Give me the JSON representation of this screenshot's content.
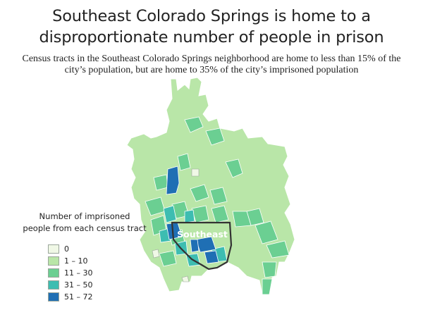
{
  "title": {
    "line1": "Southeast Colorado Springs is home to a",
    "line2": "disproportionate number of people in prison"
  },
  "subtitle": {
    "line1": "Census tracts in the Southeast Colorado Springs neighborhood are home to less than 15% of the",
    "line2": "city’s population, but are home to 35% of the city’s imprisoned population"
  },
  "map_label": "Southeast",
  "legend": {
    "title_line1": "Number of imprisoned",
    "title_line2": "people from each census tract",
    "items": [
      {
        "label": "0",
        "color": "#f0f8e6"
      },
      {
        "label": "1 – 10",
        "color": "#b9e6a8"
      },
      {
        "label": "11 – 30",
        "color": "#6bcf92"
      },
      {
        "label": "31 – 50",
        "color": "#3dbdb1"
      },
      {
        "label": "51 – 72",
        "color": "#1f6fb4"
      }
    ]
  },
  "colors": {
    "outline": "#333333",
    "tract_border": "#ffffff",
    "label_text": "#ffffff"
  }
}
